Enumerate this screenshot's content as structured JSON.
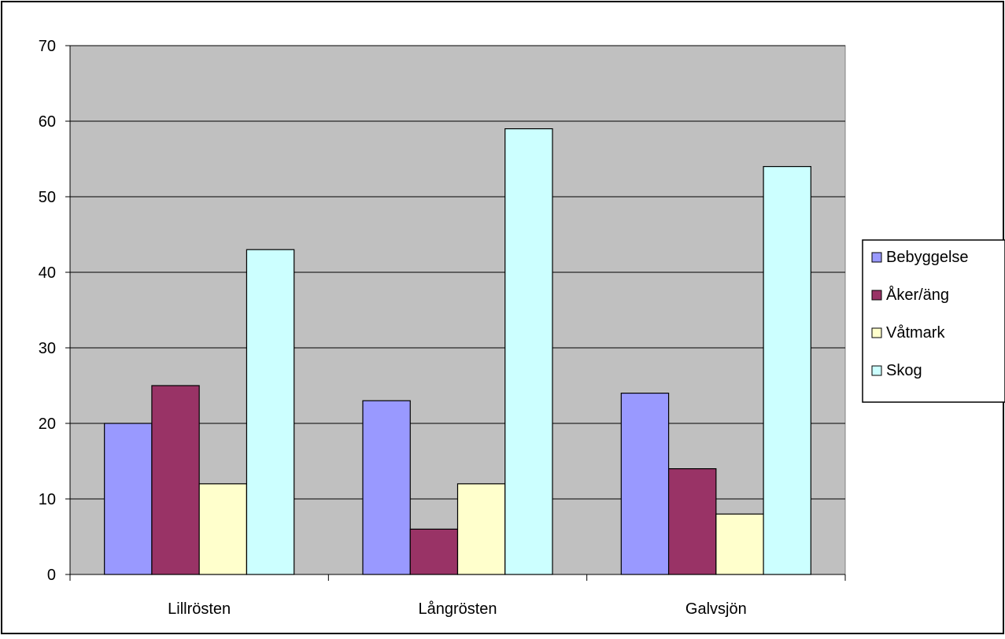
{
  "chart_data": {
    "type": "bar",
    "title": "",
    "xlabel": "",
    "ylabel": "",
    "categories": [
      "Lillrösten",
      "Långrösten",
      "Galvsjön"
    ],
    "series": [
      {
        "name": "Bebyggelse",
        "color": "#9999ff",
        "values": [
          20,
          23,
          24
        ]
      },
      {
        "name": "Åker/äng",
        "color": "#993366",
        "values": [
          25,
          6,
          14
        ]
      },
      {
        "name": "Våtmark",
        "color": "#ffffcc",
        "values": [
          12,
          12,
          8
        ]
      },
      {
        "name": "Skog",
        "color": "#ccffff",
        "values": [
          43,
          59,
          54
        ]
      }
    ],
    "ylim": [
      0,
      70
    ],
    "yticks": [
      0,
      10,
      20,
      30,
      40,
      50,
      60,
      70
    ],
    "grid": true,
    "plot_background": "#c0c0c0",
    "legend_position": "right"
  }
}
